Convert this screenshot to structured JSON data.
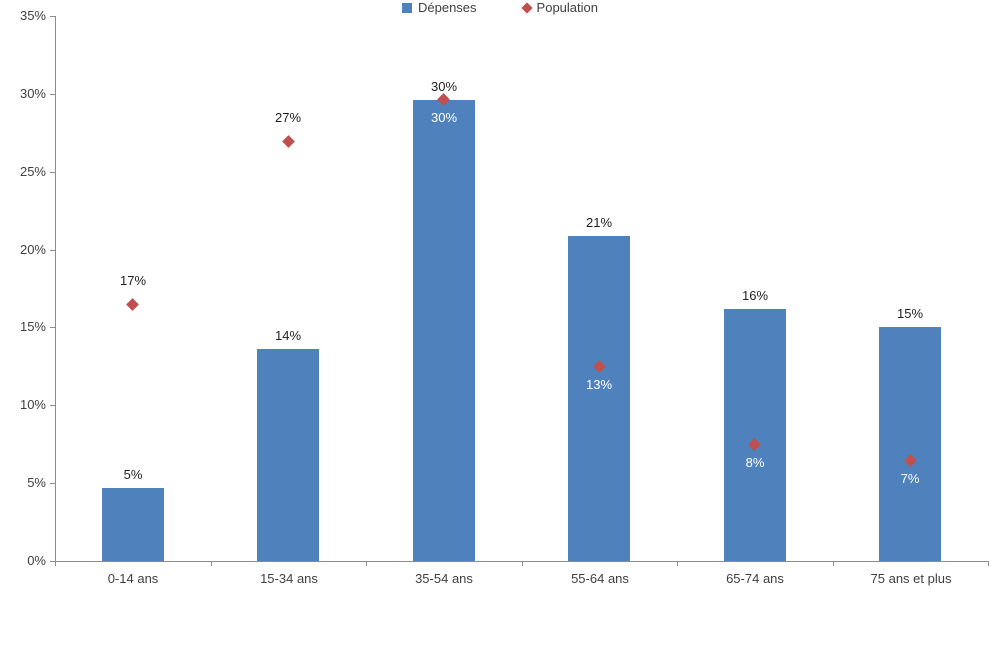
{
  "chart_data": {
    "type": "bar",
    "title": "",
    "xlabel": "",
    "ylabel": "",
    "grid": false,
    "legend_position": "bottom",
    "categories": [
      "0-14 ans",
      "15-34 ans",
      "35-54 ans",
      "55-64 ans",
      "65-74 ans",
      "75 ans et plus"
    ],
    "series": [
      {
        "name": "Dépenses",
        "type": "bar",
        "color": "#4f81bd",
        "values": [
          4.7,
          13.6,
          29.6,
          20.9,
          16.2,
          15.0
        ],
        "labels": [
          "5%",
          "14%",
          "30%",
          "21%",
          "16%",
          "15%"
        ]
      },
      {
        "name": "Population",
        "type": "scatter",
        "marker": "diamond",
        "color": "#c0504d",
        "values": [
          16.5,
          27.0,
          29.7,
          12.5,
          7.5,
          6.5
        ],
        "labels": [
          "17%",
          "27%",
          "30%",
          "13%",
          "8%",
          "7%"
        ],
        "labels_inside_bar": [
          false,
          false,
          true,
          true,
          true,
          true
        ]
      }
    ],
    "y_axis": {
      "min": 0,
      "max": 35,
      "step": 5,
      "tick_labels": [
        "0%",
        "5%",
        "10%",
        "15%",
        "20%",
        "25%",
        "30%",
        "35%"
      ]
    }
  }
}
